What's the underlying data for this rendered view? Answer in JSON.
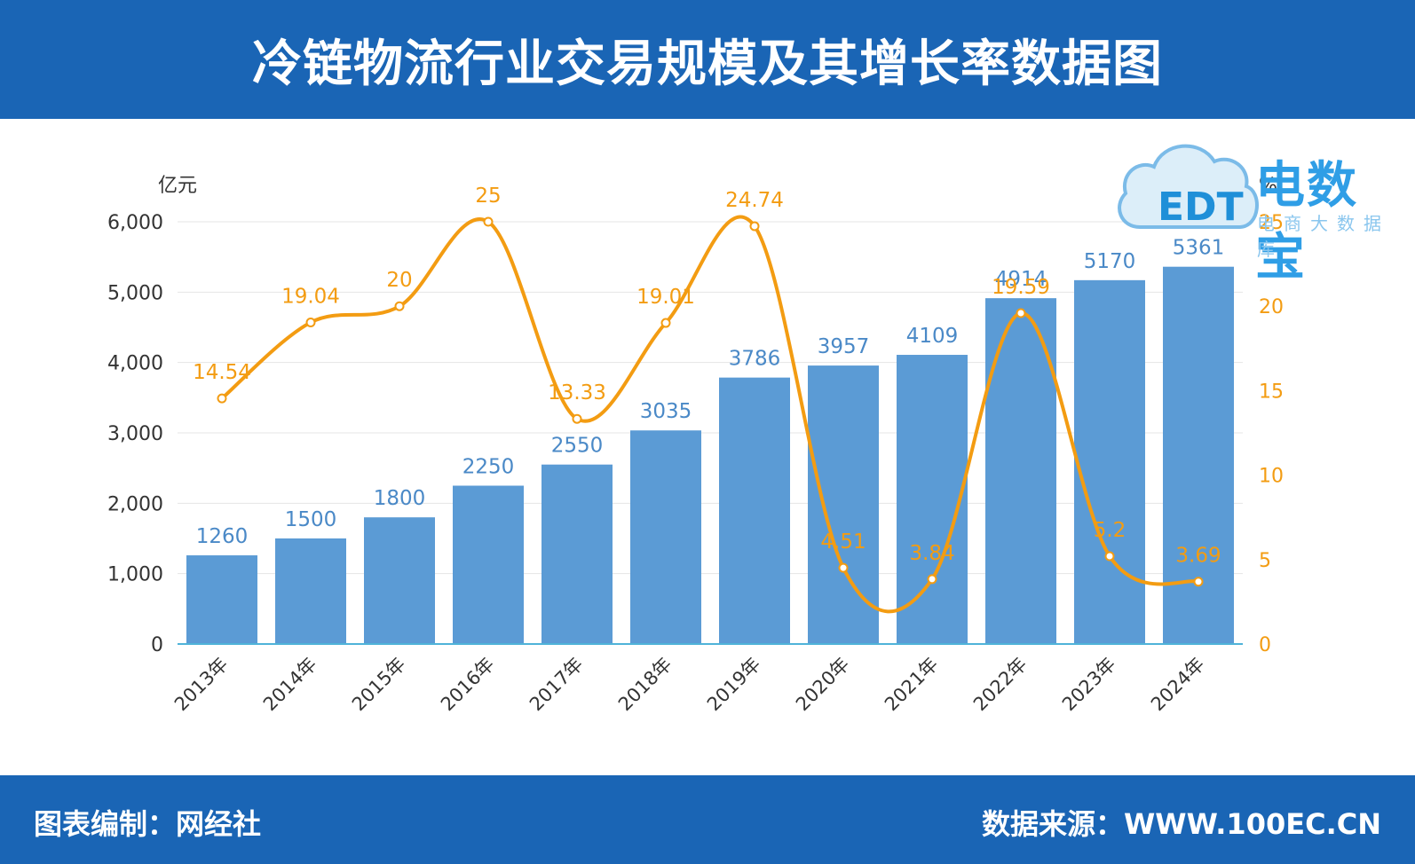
{
  "header": {
    "title": "冷链物流行业交易规模及其增长率数据图"
  },
  "footer": {
    "compiled_by": "图表编制：网经社",
    "source": "数据来源：WWW.100EC.CN"
  },
  "brand": {
    "mark": "EDT",
    "name": "电数宝",
    "tagline": "电商大数据库"
  },
  "colors": {
    "banner": "#1a65b5",
    "bar": "#5b9bd5",
    "line": "#f39c12",
    "bar_label": "#4a89c7",
    "line_label": "#f39c12"
  },
  "chart_data": {
    "type": "bar",
    "categories": [
      "2013年",
      "2014年",
      "2015年",
      "2016年",
      "2017年",
      "2018年",
      "2019年",
      "2020年",
      "2021年",
      "2022年",
      "2023年",
      "2024年"
    ],
    "series": [
      {
        "type": "bar",
        "axis": "left",
        "values": [
          1260,
          1500,
          1800,
          2250,
          2550,
          3035,
          3786,
          3957,
          4109,
          4914,
          5170,
          5361
        ]
      },
      {
        "type": "line",
        "axis": "right",
        "values": [
          14.54,
          19.04,
          20,
          25,
          13.33,
          19.01,
          24.74,
          4.51,
          3.84,
          19.59,
          5.2,
          3.69
        ]
      }
    ],
    "y_left": {
      "unit": "亿元",
      "ylim": [
        0,
        6000
      ],
      "ticks": [
        "0",
        "1,000",
        "2,000",
        "3,000",
        "4,000",
        "5,000",
        "6,000"
      ],
      "tick_values": [
        0,
        1000,
        2000,
        3000,
        4000,
        5000,
        6000
      ]
    },
    "y_right": {
      "unit": "%",
      "ylim": [
        0,
        25
      ],
      "ticks": [
        "0",
        "5",
        "10",
        "15",
        "20",
        "25"
      ],
      "tick_values": [
        0,
        5,
        10,
        15,
        20,
        25
      ]
    },
    "grid": true
  }
}
